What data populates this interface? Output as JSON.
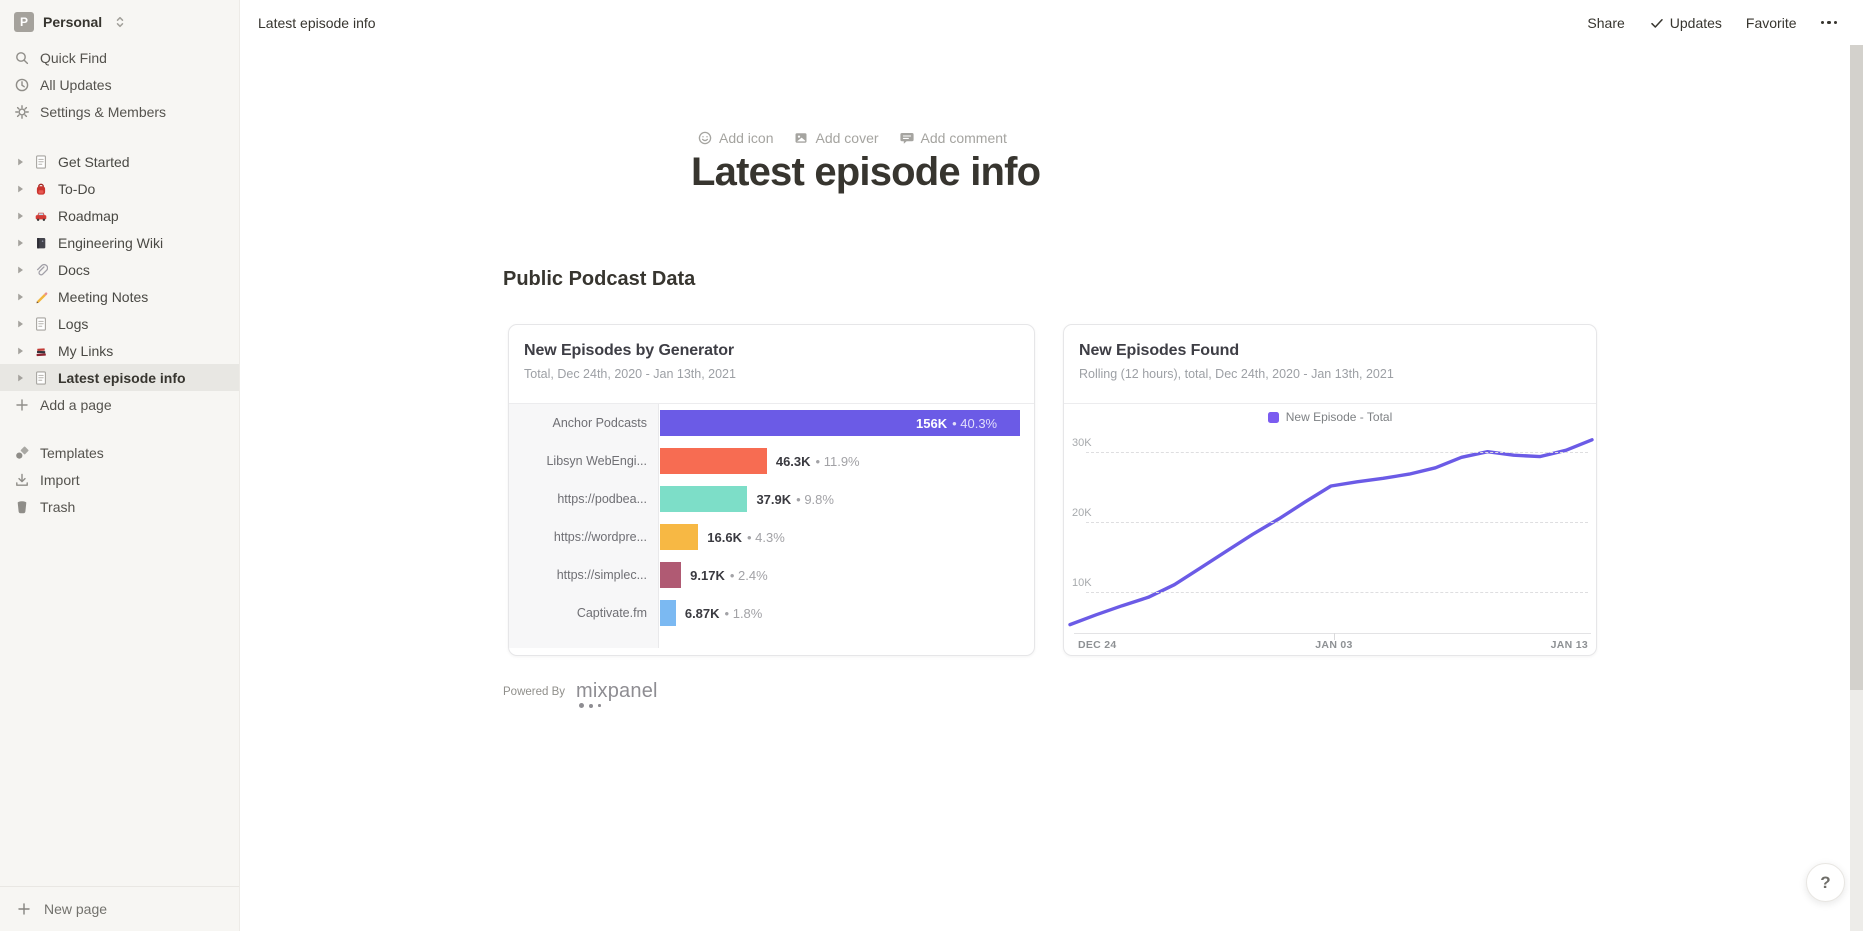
{
  "topbar": {
    "breadcrumb": "Latest episode info",
    "share": "Share",
    "updates": "Updates",
    "favorite": "Favorite"
  },
  "sidebar": {
    "workspace": {
      "initial": "P",
      "name": "Personal"
    },
    "nav": [
      {
        "icon": "search-icon",
        "label": "Quick Find"
      },
      {
        "icon": "clock-icon",
        "label": "All Updates"
      },
      {
        "icon": "gear-icon",
        "label": "Settings & Members"
      }
    ],
    "pages": [
      {
        "icon": "document-icon",
        "label": "Get Started",
        "selected": false
      },
      {
        "icon": "backpack-icon",
        "label": "To-Do",
        "selected": false
      },
      {
        "icon": "car-icon",
        "label": "Roadmap",
        "selected": false
      },
      {
        "icon": "notebook-icon",
        "label": "Engineering Wiki",
        "selected": false
      },
      {
        "icon": "paperclip-icon",
        "label": "Docs",
        "selected": false
      },
      {
        "icon": "pencil-icon",
        "label": "Meeting Notes",
        "selected": false
      },
      {
        "icon": "document-icon",
        "label": "Logs",
        "selected": false
      },
      {
        "icon": "books-icon",
        "label": "My Links",
        "selected": false
      },
      {
        "icon": "document-icon",
        "label": "Latest episode info",
        "selected": true
      }
    ],
    "add_page": "Add a page",
    "secondary": [
      {
        "icon": "templates-icon",
        "label": "Templates"
      },
      {
        "icon": "import-icon",
        "label": "Import"
      },
      {
        "icon": "trash-icon",
        "label": "Trash"
      }
    ],
    "new_page": "New page"
  },
  "page": {
    "add_icon": "Add icon",
    "add_cover": "Add cover",
    "add_comment": "Add comment",
    "title": "Latest episode info",
    "section_heading": "Public Podcast Data",
    "powered_by": "Powered By",
    "brand": "mixpanel"
  },
  "chart_data": [
    {
      "type": "bar",
      "orientation": "horizontal",
      "title": "New Episodes by Generator",
      "subtitle": "Total, Dec 24th, 2020 - Jan 13th, 2021",
      "max_value": 156000,
      "items": [
        {
          "category": "Anchor Podcasts",
          "value": 156000,
          "value_label": "156K",
          "percent": "40.3%",
          "color": "#6B5BE6",
          "label_inside": true
        },
        {
          "category": "Libsyn WebEngi...",
          "value": 46300,
          "value_label": "46.3K",
          "percent": "11.9%",
          "color": "#F76C52",
          "label_inside": false
        },
        {
          "category": "https://podbea...",
          "value": 37900,
          "value_label": "37.9K",
          "percent": "9.8%",
          "color": "#7DDEC8",
          "label_inside": false
        },
        {
          "category": "https://wordpre...",
          "value": 16600,
          "value_label": "16.6K",
          "percent": "4.3%",
          "color": "#F7B844",
          "label_inside": false
        },
        {
          "category": "https://simplec...",
          "value": 9170,
          "value_label": "9.17K",
          "percent": "2.4%",
          "color": "#B05A73",
          "label_inside": false
        },
        {
          "category": "Captivate.fm",
          "value": 6870,
          "value_label": "6.87K",
          "percent": "1.8%",
          "color": "#7BB9F2",
          "label_inside": false
        }
      ]
    },
    {
      "type": "line",
      "title": "New Episodes Found",
      "subtitle": "Rolling (12 hours), total, Dec 24th, 2020 - Jan 13th, 2021",
      "legend": [
        {
          "label": "New Episode - Total",
          "color": "#7B5CF0"
        }
      ],
      "line_color": "#6B5BE6",
      "unit": "thousands",
      "x_range": [
        "Dec 24, 2020",
        "Jan 13, 2021"
      ],
      "x_ticks": [
        "DEC 24",
        "JAN 03",
        "JAN 13"
      ],
      "y_ticks": [
        {
          "label": "10K",
          "value": 10
        },
        {
          "label": "20K",
          "value": 20
        },
        {
          "label": "30K",
          "value": 30
        }
      ],
      "values_thousands": [
        5.5,
        6.9,
        8.2,
        9.4,
        11.2,
        13.6,
        16.0,
        18.4,
        20.6,
        23.0,
        25.3,
        25.9,
        26.4,
        27.0,
        27.9,
        29.4,
        30.2,
        29.7,
        29.5,
        30.4,
        31.9
      ]
    }
  ],
  "help_label": "?"
}
